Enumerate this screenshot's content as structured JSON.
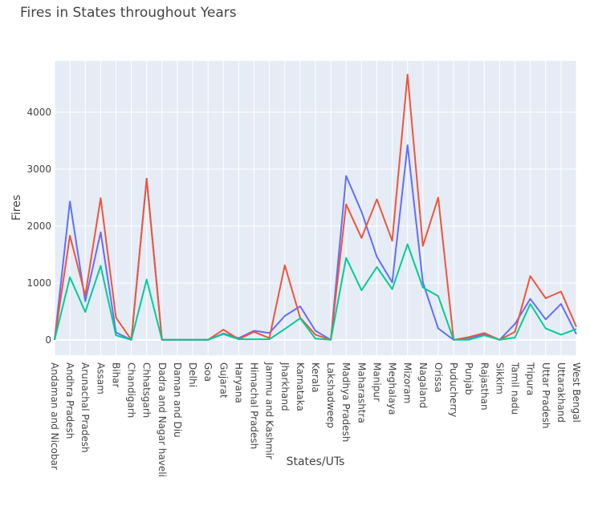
{
  "chart_data": {
    "type": "line",
    "title": "Fires in States throughout Years",
    "xlabel": "States/UTs",
    "ylabel": "Fires",
    "ylim": [
      -270,
      4900
    ],
    "y_ticks": [
      0,
      1000,
      2000,
      3000,
      4000
    ],
    "grid": true,
    "legend": "none",
    "colors": {
      "plot_bg": "#E5ECF6",
      "grid": "#FFFFFF",
      "text": "#444444"
    },
    "categories": [
      "Andaman and Nicobar",
      "Andhra Pradesh",
      "Arunachal Pradesh",
      "Assam",
      "Bihar",
      "Chandigarh",
      "Chhatsgarh",
      "Dadra and Nagar haveli",
      "Daman and Diu",
      "Delhi",
      "Goa",
      "Gujarat",
      "Haryana",
      "Himachal Pradesh",
      "Jammu and Kashmir",
      "Jharkhand",
      "Karnataka",
      "Kerala",
      "Lakshadweep",
      "Madhya Pradesh",
      "Maharashtra",
      "Manipur",
      "Meghalaya",
      "Mizoram",
      "Nagaland",
      "Orissa",
      "Puducherry",
      "Punjab",
      "Rajasthan",
      "Sikkim",
      "Tamil nadu",
      "Tripura",
      "Uttar Pradesh",
      "Uttarakhand",
      "West Bengal"
    ],
    "series": [
      {
        "color": "#636EFA",
        "values": [
          0,
          2430,
          680,
          1890,
          130,
          0,
          2830,
          0,
          0,
          0,
          0,
          110,
          30,
          160,
          120,
          420,
          590,
          160,
          0,
          2880,
          2250,
          1460,
          1010,
          3420,
          1010,
          200,
          0,
          30,
          100,
          0,
          280,
          720,
          360,
          630,
          100
        ]
      },
      {
        "color": "#EF553B",
        "values": [
          0,
          1830,
          780,
          2490,
          390,
          0,
          2830,
          0,
          0,
          0,
          0,
          180,
          10,
          140,
          30,
          1310,
          390,
          90,
          0,
          2380,
          1790,
          2470,
          1740,
          4660,
          1650,
          2500,
          0,
          50,
          120,
          0,
          140,
          1120,
          730,
          850,
          230
        ]
      },
      {
        "color": "#00CC96",
        "values": [
          0,
          1100,
          490,
          1300,
          80,
          0,
          1060,
          0,
          0,
          0,
          0,
          100,
          10,
          10,
          10,
          190,
          380,
          20,
          0,
          1440,
          870,
          1280,
          890,
          1680,
          920,
          770,
          0,
          0,
          80,
          0,
          40,
          630,
          200,
          90,
          190
        ]
      }
    ]
  }
}
